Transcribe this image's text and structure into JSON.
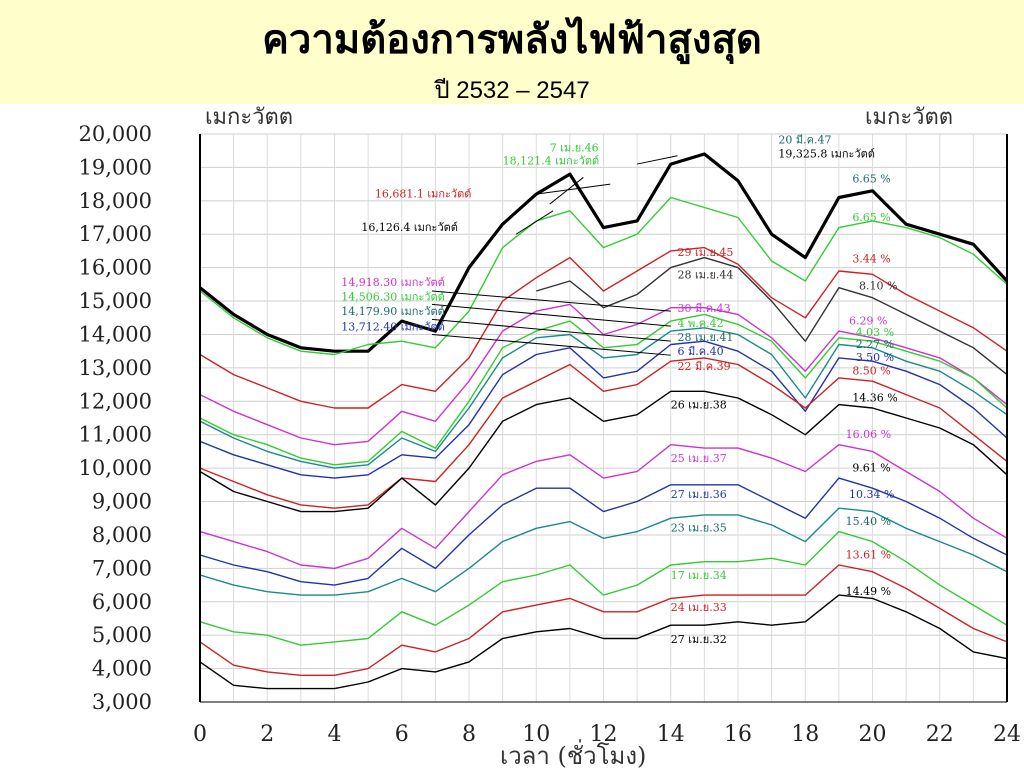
{
  "header": {
    "title": "ความต้องการพลังไฟฟ้าสูงสุด",
    "subtitle": "ปี 2532 – 2547"
  },
  "chart_data": {
    "type": "line",
    "ylabel_left": "เมกะวัตต",
    "ylabel_right": "เมกะวัตต",
    "xlabel": "เวลา (ชั่วโมง)",
    "xlim": [
      0,
      24
    ],
    "ylim": [
      3000,
      20000
    ],
    "x_ticks": [
      "0",
      "2",
      "4",
      "6",
      "8",
      "10",
      "12",
      "14",
      "16",
      "18",
      "20",
      "22",
      "24"
    ],
    "y_ticks": [
      "3,000",
      "4,000",
      "5,000",
      "6,000",
      "7,000",
      "8,000",
      "9,000",
      "10,000",
      "11,000",
      "12,000",
      "13,000",
      "14,000",
      "15,000",
      "16,000",
      "17,000",
      "18,000",
      "19,000",
      "20,000"
    ],
    "grid": true,
    "x": [
      0,
      1,
      2,
      3,
      4,
      5,
      6,
      7,
      8,
      9,
      10,
      11,
      12,
      13,
      14,
      15,
      16,
      17,
      18,
      19,
      20,
      21,
      22,
      23,
      24
    ],
    "series": [
      {
        "name": "20 มี.ค.47",
        "color": "#000000",
        "bold": true,
        "values": [
          15400,
          14600,
          14000,
          13600,
          13500,
          13500,
          14400,
          14100,
          16000,
          17300,
          18200,
          18800,
          17200,
          17400,
          19100,
          19400,
          18600,
          17000,
          16300,
          18100,
          18300,
          17300,
          17000,
          16700,
          15600
        ]
      },
      {
        "name": "7 เม.ย.46",
        "color": "#33cc33",
        "values": [
          15300,
          14500,
          13900,
          13500,
          13400,
          13700,
          13800,
          13600,
          14700,
          16600,
          17400,
          17700,
          16600,
          17000,
          18100,
          17800,
          17500,
          16200,
          15600,
          17200,
          17400,
          17200,
          16900,
          16400,
          15500
        ]
      },
      {
        "name": "29 เม.ย.45",
        "color": "#cc2222",
        "values": [
          13400,
          12800,
          12400,
          12000,
          11800,
          11800,
          12500,
          12300,
          13300,
          15000,
          15700,
          16300,
          15300,
          15900,
          16500,
          16600,
          16100,
          15100,
          14500,
          15900,
          15800,
          15200,
          14700,
          14200,
          13500
        ]
      },
      {
        "name": "28 เม.ย.44",
        "color": "#333333",
        "values": [
          null,
          null,
          null,
          null,
          null,
          null,
          null,
          null,
          null,
          null,
          15300,
          15600,
          14800,
          15200,
          16000,
          16300,
          16000,
          15000,
          13800,
          15400,
          15100,
          14600,
          14100,
          13600,
          12800
        ]
      },
      {
        "name": "30 มี.ค.43",
        "color": "#cc33cc",
        "values": [
          12200,
          11700,
          11300,
          10900,
          10700,
          10800,
          11700,
          11400,
          12600,
          14100,
          14700,
          14900,
          14000,
          14300,
          14800,
          14800,
          14600,
          13900,
          12900,
          14100,
          13900,
          13600,
          13300,
          12700,
          11900
        ]
      },
      {
        "name": "4 พ.ค.42",
        "color": "#33cc33",
        "values": [
          11500,
          11000,
          10700,
          10300,
          10100,
          10200,
          11100,
          10600,
          12000,
          13600,
          14100,
          14400,
          13600,
          13700,
          14400,
          14600,
          14300,
          13800,
          12700,
          13900,
          13800,
          13500,
          13200,
          12700,
          11800
        ]
      },
      {
        "name": "28 เม.ย.41",
        "color": "#1a8a8a",
        "values": [
          11400,
          10900,
          10500,
          10200,
          10000,
          10100,
          10900,
          10500,
          11800,
          13300,
          13900,
          14000,
          13300,
          13400,
          14100,
          14200,
          14000,
          13400,
          12100,
          13700,
          13600,
          13200,
          12900,
          12300,
          11600
        ]
      },
      {
        "name": "6 มี.ค.40",
        "color": "#2233aa",
        "values": [
          10800,
          10400,
          10100,
          9800,
          9700,
          9800,
          10400,
          10300,
          11300,
          12800,
          13400,
          13600,
          12700,
          12900,
          13700,
          13800,
          13500,
          12900,
          11700,
          13300,
          13200,
          12900,
          12500,
          11800,
          10900
        ]
      },
      {
        "name": "22 มี.ค.39",
        "color": "#cc2222",
        "values": [
          10000,
          9600,
          9200,
          8900,
          8800,
          8900,
          9700,
          9600,
          10700,
          12100,
          12600,
          13100,
          12300,
          12500,
          13200,
          13300,
          13100,
          12500,
          11800,
          12700,
          12600,
          12200,
          11800,
          11000,
          10200
        ]
      },
      {
        "name": "26 เม.ย.38",
        "color": "#000000",
        "values": [
          9900,
          9300,
          9000,
          8700,
          8700,
          8800,
          9700,
          8900,
          10000,
          11400,
          11900,
          12100,
          11400,
          11600,
          12300,
          12300,
          12100,
          11600,
          11000,
          11900,
          11800,
          11500,
          11200,
          10700,
          9800
        ]
      },
      {
        "name": "25 เม.ย.37",
        "color": "#cc33cc",
        "values": [
          8100,
          7800,
          7500,
          7100,
          7000,
          7300,
          8200,
          7600,
          8700,
          9800,
          10200,
          10400,
          9700,
          9900,
          10700,
          10600,
          10600,
          10300,
          9900,
          10700,
          10500,
          9900,
          9300,
          8500,
          7900
        ]
      },
      {
        "name": "27 เม.ย.36",
        "color": "#2233aa",
        "values": [
          7400,
          7100,
          6900,
          6600,
          6500,
          6700,
          7600,
          7000,
          8000,
          8900,
          9400,
          9400,
          8700,
          9000,
          9500,
          9500,
          9500,
          9000,
          8500,
          9700,
          9400,
          9000,
          8500,
          7900,
          7400
        ]
      },
      {
        "name": "23 เม.ย.35",
        "color": "#1a8a8a",
        "values": [
          6800,
          6500,
          6300,
          6200,
          6200,
          6300,
          6700,
          6300,
          7000,
          7800,
          8200,
          8400,
          7900,
          8100,
          8500,
          8600,
          8600,
          8300,
          7800,
          8800,
          8700,
          8200,
          7800,
          7400,
          6900
        ]
      },
      {
        "name": "17 เม.ย.34",
        "color": "#33cc33",
        "values": [
          5400,
          5100,
          5000,
          4700,
          4800,
          4900,
          5700,
          5300,
          5900,
          6600,
          6800,
          7100,
          6200,
          6500,
          7100,
          7200,
          7200,
          7300,
          7100,
          8100,
          7800,
          7200,
          6500,
          5900,
          5300
        ]
      },
      {
        "name": "24 เม.ย.33",
        "color": "#cc2222",
        "values": [
          4800,
          4100,
          3900,
          3800,
          3800,
          4000,
          4700,
          4500,
          4900,
          5700,
          5900,
          6100,
          5700,
          5700,
          6100,
          6200,
          6200,
          6200,
          6200,
          7100,
          6900,
          6400,
          5800,
          5200,
          4800
        ]
      },
      {
        "name": "27 เม.ย.32",
        "color": "#000000",
        "values": [
          4200,
          3500,
          3400,
          3400,
          3400,
          3600,
          4000,
          3900,
          4200,
          4900,
          5100,
          5200,
          4900,
          4900,
          5300,
          5300,
          5400,
          5300,
          5400,
          6200,
          6100,
          5700,
          5200,
          4500,
          4300
        ]
      }
    ],
    "peak_labels": [
      {
        "text": "20 มี.ค.47",
        "color": "#1a6a6a",
        "x": 17.2,
        "y": 19720
      },
      {
        "text": "19,325.8 เมกะวัตต์",
        "color": "#000000",
        "x": 17.2,
        "y": 19300
      },
      {
        "text": "7 เม.ย.46",
        "color": "#33cc33",
        "x": 10.4,
        "y": 19480
      },
      {
        "text": "18,121.4 เมกะวัตต์",
        "color": "#33cc33",
        "x": 9.0,
        "y": 19080
      },
      {
        "text": "16,681.1 เมกะวัตต์",
        "color": "#cc2222",
        "x": 5.2,
        "y": 18100
      },
      {
        "text": "16,126.4 เมกะวัตต์",
        "color": "#000000",
        "x": 4.8,
        "y": 17100
      },
      {
        "text": "14,918.30 เมกะวัตต์",
        "color": "#cc33cc",
        "x": 4.2,
        "y": 15450
      },
      {
        "text": "14,506.30 เมกะวัตต์",
        "color": "#33cc33",
        "x": 4.2,
        "y": 15020
      },
      {
        "text": "14,179.90 เมกะวัตต์",
        "color": "#1a6a6a",
        "x": 4.2,
        "y": 14580
      },
      {
        "text": "13,712.40 เมกะวัตต์",
        "color": "#2233aa",
        "x": 4.2,
        "y": 14120
      }
    ],
    "date_labels": [
      {
        "text": "29 เม.ย.45",
        "color": "#cc2222",
        "x": 14.2,
        "y": 16350
      },
      {
        "text": "28 เม.ย.44",
        "color": "#333333",
        "x": 14.2,
        "y": 15680
      },
      {
        "text": "30 มี.ค.43",
        "color": "#cc33cc",
        "x": 14.2,
        "y": 14680
      },
      {
        "text": "4 พ.ค.42",
        "color": "#33cc33",
        "x": 14.2,
        "y": 14230
      },
      {
        "text": "28 เม.ย.41",
        "color": "#1a6a6a",
        "x": 14.2,
        "y": 13800
      },
      {
        "text": "6 มี.ค.40",
        "color": "#2233aa",
        "x": 14.2,
        "y": 13380
      },
      {
        "text": "22 มี.ค.39",
        "color": "#cc2222",
        "x": 14.2,
        "y": 12930
      },
      {
        "text": "26 เม.ย.38",
        "color": "#000000",
        "x": 14.0,
        "y": 11780
      },
      {
        "text": "25 เม.ย.37",
        "color": "#cc33cc",
        "x": 14.0,
        "y": 10180
      },
      {
        "text": "27 เม.ย.36",
        "color": "#2233aa",
        "x": 14.0,
        "y": 9100
      },
      {
        "text": "23 เม.ย.35",
        "color": "#1a6a6a",
        "x": 14.0,
        "y": 8100
      },
      {
        "text": "17 เม.ย.34",
        "color": "#33cc33",
        "x": 14.0,
        "y": 6680
      },
      {
        "text": "24 เม.ย.33",
        "color": "#cc2222",
        "x": 14.0,
        "y": 5720
      },
      {
        "text": "27 เม.ย.32",
        "color": "#000000",
        "x": 14.0,
        "y": 4760
      }
    ],
    "growth_labels": [
      {
        "text": "6.65 %",
        "color": "#1a6a6a",
        "x": 19.4,
        "y": 18550
      },
      {
        "text": "6.65 %",
        "color": "#33cc33",
        "x": 19.4,
        "y": 17400
      },
      {
        "text": "3.44 %",
        "color": "#cc2222",
        "x": 19.4,
        "y": 16150
      },
      {
        "text": "8.10 %",
        "color": "#333333",
        "x": 19.6,
        "y": 15350
      },
      {
        "text": "6.29 %",
        "color": "#cc33cc",
        "x": 19.3,
        "y": 14300
      },
      {
        "text": "4.03 %",
        "color": "#33cc33",
        "x": 19.5,
        "y": 13960
      },
      {
        "text": "2.27 %",
        "color": "#1a6a6a",
        "x": 19.5,
        "y": 13600
      },
      {
        "text": "3.50 %",
        "color": "#2233aa",
        "x": 19.5,
        "y": 13200
      },
      {
        "text": "8.50 %",
        "color": "#cc2222",
        "x": 19.4,
        "y": 12800
      },
      {
        "text": "14.36 %",
        "color": "#000000",
        "x": 19.4,
        "y": 12000
      },
      {
        "text": "16.06 %",
        "color": "#cc33cc",
        "x": 19.2,
        "y": 10900
      },
      {
        "text": "9.61 %",
        "color": "#000000",
        "x": 19.4,
        "y": 9900
      },
      {
        "text": "10.34 %",
        "color": "#2233aa",
        "x": 19.3,
        "y": 9100
      },
      {
        "text": "15.40 %",
        "color": "#1a6a6a",
        "x": 19.2,
        "y": 8300
      },
      {
        "text": "13.61 %",
        "color": "#cc2222",
        "x": 19.2,
        "y": 7300
      },
      {
        "text": "14.49 %",
        "color": "#000000",
        "x": 19.2,
        "y": 6200
      }
    ]
  }
}
